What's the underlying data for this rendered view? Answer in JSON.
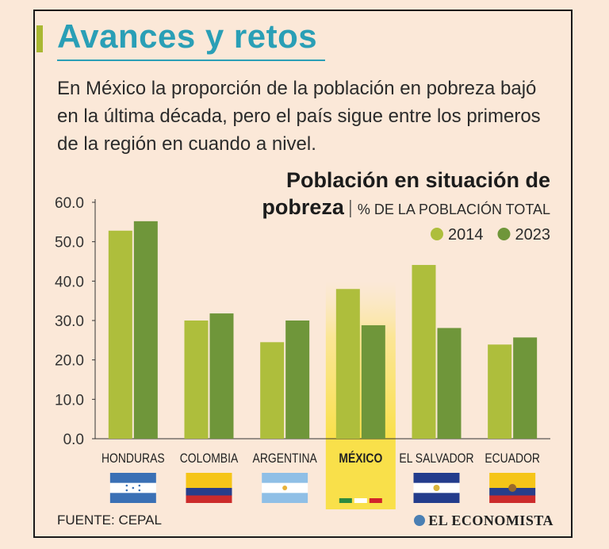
{
  "header": {
    "title": "Avances y retos",
    "intro": "En México la proporción de la población en pobreza bajó en la última década, pero el país sigue entre los primeros de la región en cuando a nivel."
  },
  "chart_data": {
    "type": "bar",
    "title_main": "Población en situación de",
    "title_second": "pobreza",
    "subtitle": "% DE LA POBLACIÓN TOTAL",
    "categories": [
      "HONDURAS",
      "COLOMBIA",
      "ARGENTINA",
      "MÉXICO",
      "EL SALVADOR",
      "ECUADOR"
    ],
    "highlight": "MÉXICO",
    "series": [
      {
        "name": "2014",
        "color": "#aebe3c",
        "values": [
          52.8,
          30.0,
          24.5,
          38.0,
          44.1,
          23.9
        ]
      },
      {
        "name": "2023",
        "color": "#6f963a",
        "values": [
          55.2,
          31.8,
          30.0,
          28.8,
          28.1,
          25.7
        ]
      }
    ],
    "yticks": [
      "0.0",
      "10.0",
      "20.0",
      "30.0",
      "40.0",
      "50.0",
      "60.0"
    ],
    "ylim": [
      0,
      60
    ],
    "legend_position": "top-right",
    "flags": [
      "honduras-flag",
      "colombia-flag",
      "argentina-flag",
      "mexico-flag",
      "el-salvador-flag",
      "ecuador-flag"
    ]
  },
  "footer": {
    "source": "FUENTE: CEPAL",
    "brand": "EL ECONOMISTA"
  }
}
